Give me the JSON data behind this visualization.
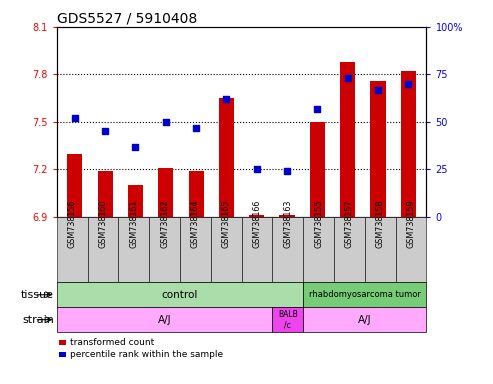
{
  "title": "GDS5527 / 5910408",
  "samples": [
    "GSM738156",
    "GSM738160",
    "GSM738161",
    "GSM738162",
    "GSM738164",
    "GSM738165",
    "GSM738166",
    "GSM738163",
    "GSM738155",
    "GSM738157",
    "GSM738158",
    "GSM738159"
  ],
  "bar_values": [
    7.3,
    7.19,
    7.1,
    7.21,
    7.19,
    7.65,
    6.91,
    6.91,
    7.5,
    7.88,
    7.76,
    7.82
  ],
  "bar_base": 6.9,
  "percentile_values": [
    52,
    45,
    37,
    50,
    47,
    62,
    25,
    24,
    57,
    73,
    67,
    70
  ],
  "ylim_left": [
    6.9,
    8.1
  ],
  "ylim_right": [
    0,
    100
  ],
  "yticks_left": [
    6.9,
    7.2,
    7.5,
    7.8,
    8.1
  ],
  "yticks_right": [
    0,
    25,
    50,
    75,
    100
  ],
  "ytick_labels_right": [
    "0",
    "25",
    "50",
    "75",
    "100%"
  ],
  "bar_color": "#cc0000",
  "dot_color": "#0000cc",
  "tissue_control_color": "#aaddaa",
  "tissue_tumor_color": "#77cc77",
  "strain_aj_color": "#ffaaff",
  "strain_balb_color": "#ee44ee",
  "sample_box_color": "#cccccc",
  "tissue_label": "tissue",
  "strain_label": "strain",
  "tissue_control_text": "control",
  "tissue_tumor_text": "rhabdomyosarcoma tumor",
  "strain_aj1_text": "A/J",
  "strain_balb_text": "BALB\n/c",
  "strain_aj2_text": "A/J",
  "legend_bar_text": "transformed count",
  "legend_dot_text": "percentile rank within the sample",
  "control_count": 8,
  "balb_count": 1,
  "tumor_count": 4,
  "title_fontsize": 10,
  "tick_fontsize": 7,
  "label_fontsize": 8,
  "annot_fontsize": 7.5
}
